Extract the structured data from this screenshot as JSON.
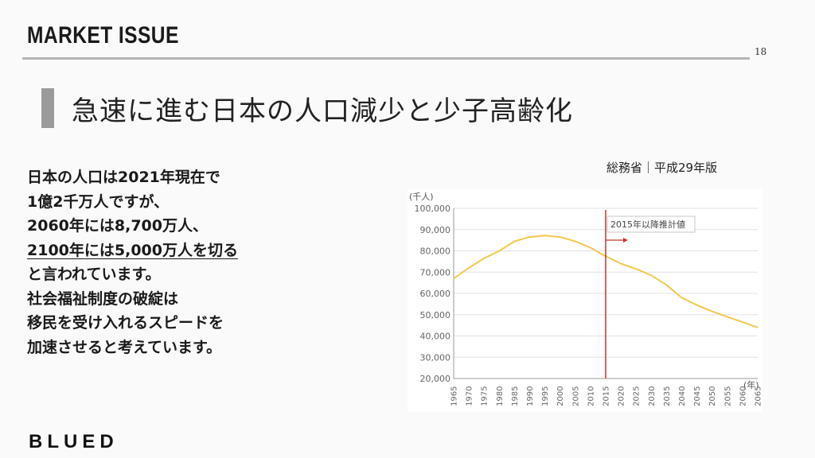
{
  "header": {
    "title": "MARKET ISSUE",
    "page_number": "18"
  },
  "slide": {
    "title": "急速に進む日本の人口減少と少子高齢化"
  },
  "body": {
    "lines": [
      "日本の人口は2021年現在で",
      "1億2千万人ですが、",
      "2060年には8,700万人、",
      "2100年には5,000万人を切る",
      "と言われています。",
      "社会福祉制度の破綻は",
      "移民を受け入れるスピードを",
      "加速させると考えています。"
    ]
  },
  "source": "総務省｜平成29年版",
  "footer": {
    "logo": "BLUED"
  },
  "colors": {
    "line": "#f2c94c",
    "marker": "#c0392b",
    "accent_bar": "#9a9a9a"
  },
  "chart_data": {
    "type": "line",
    "y_unit": "(千人)",
    "x_unit": "(年)",
    "ylim": [
      20000,
      100000
    ],
    "yticks": [
      "100,000",
      "90,000",
      "80,000",
      "70,000",
      "60,000",
      "50,000",
      "40,000",
      "30,000",
      "20,000"
    ],
    "xticks": [
      "1965",
      "1970",
      "1975",
      "1980",
      "1985",
      "1990",
      "1995",
      "2000",
      "2005",
      "2010",
      "2015",
      "2020",
      "2025",
      "2030",
      "2035",
      "2040",
      "2045",
      "2050",
      "2055",
      "2060",
      "2065"
    ],
    "x": [
      1965,
      1970,
      1975,
      1980,
      1985,
      1990,
      1995,
      2000,
      2005,
      2010,
      2015,
      2020,
      2025,
      2030,
      2035,
      2040,
      2045,
      2050,
      2055,
      2060,
      2065
    ],
    "values": [
      67000,
      72000,
      76500,
      80000,
      84500,
      86500,
      87200,
      86500,
      84500,
      81500,
      77500,
      74000,
      71500,
      68500,
      64000,
      58000,
      54500,
      51500,
      49000,
      46500,
      44000
    ],
    "annotation": "2015年以降推計値",
    "annotation_x": 2015,
    "grid": true
  }
}
